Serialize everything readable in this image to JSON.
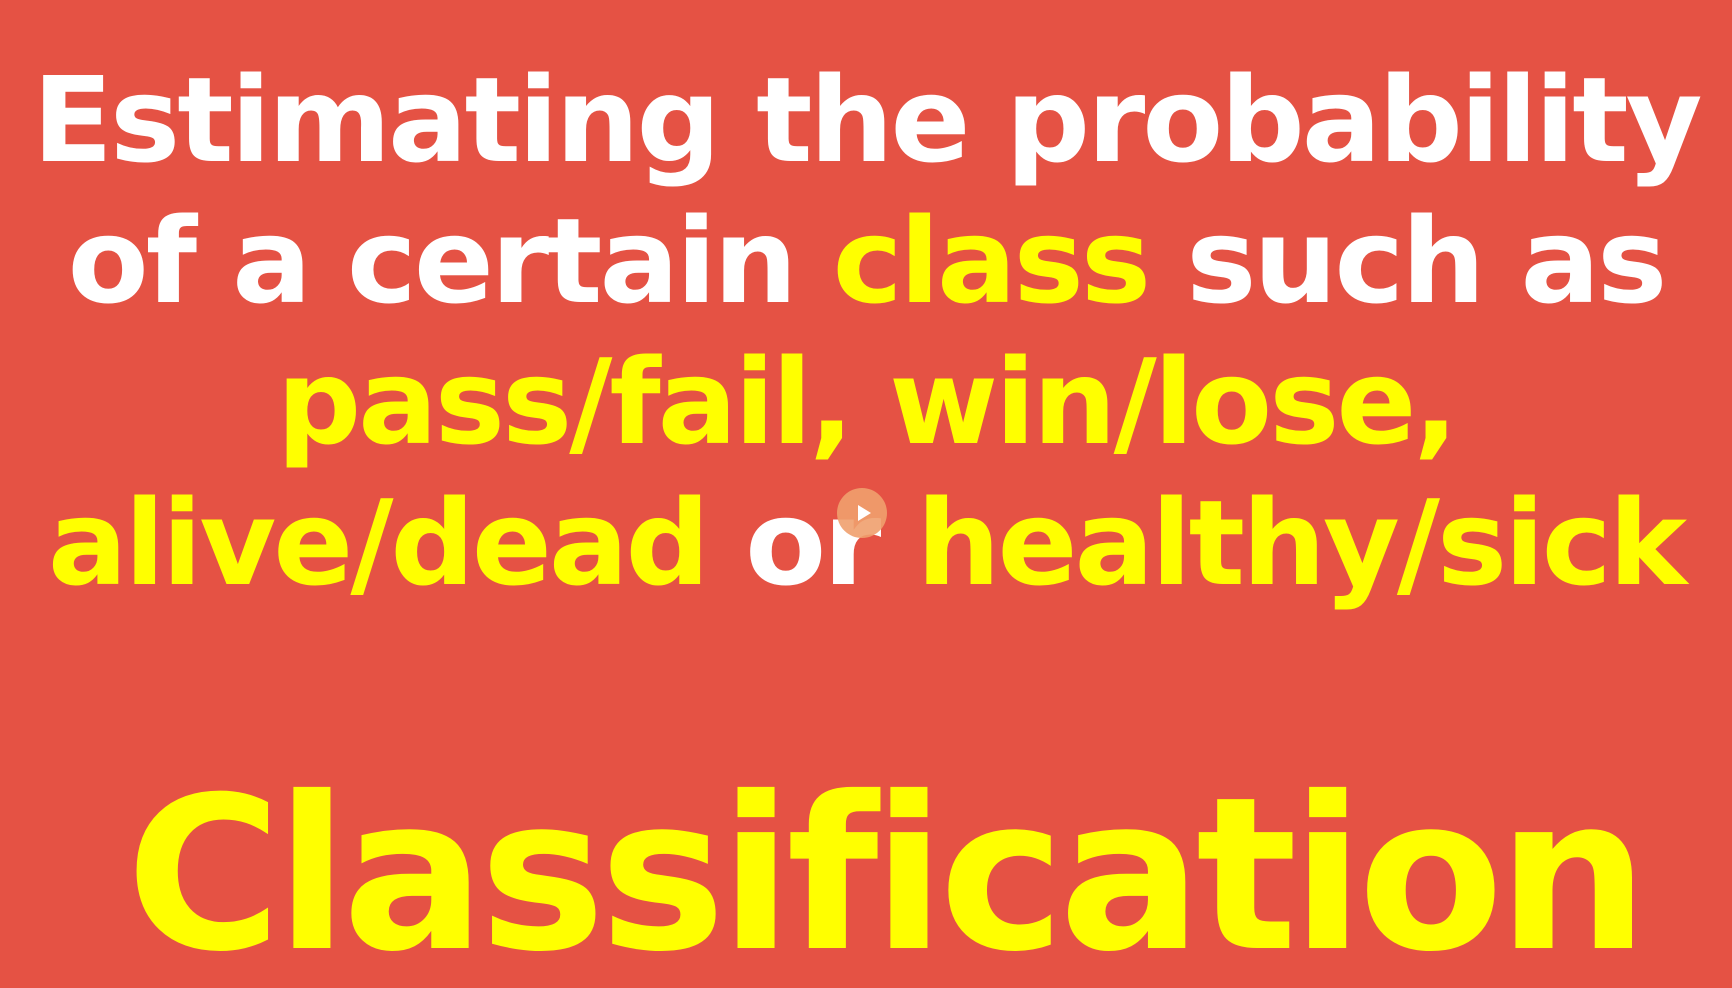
{
  "slide": {
    "lines": [
      [
        {
          "text": "Estimating the probability",
          "color": "white"
        }
      ],
      [
        {
          "text": "of a certain ",
          "color": "white"
        },
        {
          "text": "class",
          "color": "yellow"
        },
        {
          "text": " such as",
          "color": "white"
        }
      ],
      [
        {
          "text": "pass/fail, win/lose,",
          "color": "yellow"
        }
      ],
      [
        {
          "text": "alive/dead",
          "color": "yellow"
        },
        {
          "text": " or ",
          "color": "white"
        },
        {
          "text": "healthy/sick",
          "color": "yellow"
        }
      ]
    ],
    "heading": "Classification"
  },
  "colors": {
    "background": "#e55244",
    "white": "#ffffff",
    "yellow": "#ffff00"
  },
  "player": {
    "icon": "play-icon"
  }
}
